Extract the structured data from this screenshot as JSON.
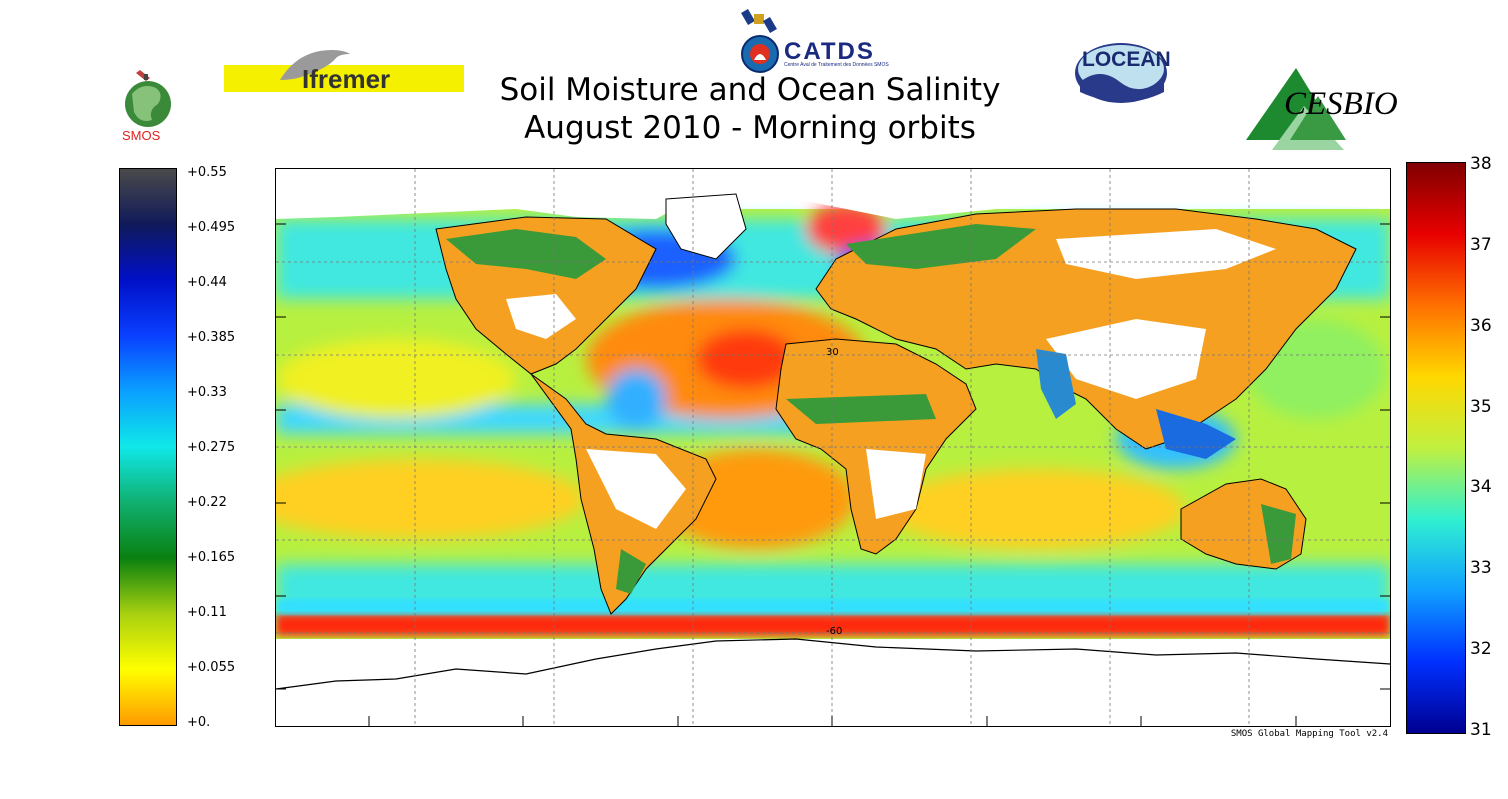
{
  "title": {
    "line1": "Soil Moisture and Ocean Salinity",
    "line2": "August 2010 - Morning orbits"
  },
  "logos": {
    "smos": "SMOS",
    "ifremer": "Ifremer",
    "catds": "CATDS",
    "catds_subtitle": "Centre Aval de Traitement des Données SMOS",
    "locean": "LOCEAN",
    "cesbio": "CESBIO"
  },
  "soil_moisture_scale": {
    "ticks": [
      "+0.55",
      "+0.495",
      "+0.44",
      "+0.385",
      "+0.33",
      "+0.275",
      "+0.22",
      "+0.165",
      "+0.11",
      "+0.055",
      "+0."
    ],
    "colors": [
      "#4a4a4a",
      "#101a5a",
      "#0010c8",
      "#0a40ff",
      "#0aa0ff",
      "#10e8e8",
      "#10b070",
      "#0a8010",
      "#a8d010",
      "#ffff00",
      "#ff9a00"
    ]
  },
  "salinity_scale": {
    "ticks": [
      "38",
      "37",
      "36",
      "35",
      "34",
      "33",
      "32",
      "31"
    ],
    "colors": [
      "#800000",
      "#e80000",
      "#ff7000",
      "#ffd800",
      "#c0f040",
      "#30f0d0",
      "#10a0ff",
      "#0030ff",
      "#000090"
    ]
  },
  "map": {
    "lat_labels": [
      "30",
      "-60"
    ],
    "credit": "SMOS Global Mapping Tool v2.4"
  }
}
